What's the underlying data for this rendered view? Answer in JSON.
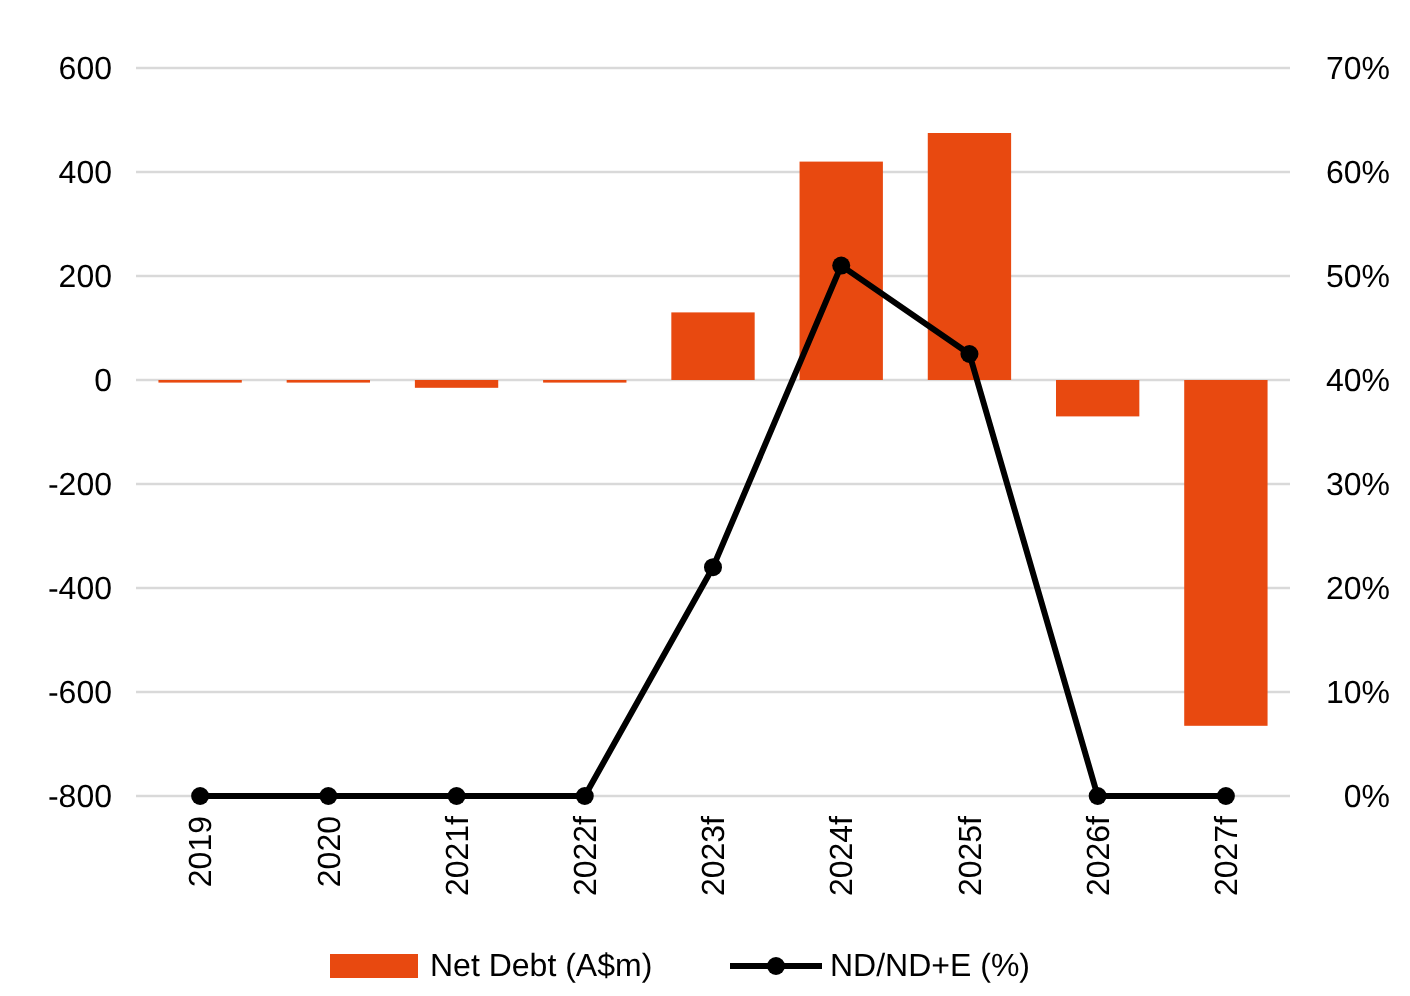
{
  "chart_data": {
    "type": "bar",
    "categories": [
      "2019",
      "2020",
      "2021f",
      "2022f",
      "2023f",
      "2024f",
      "2025f",
      "2026f",
      "2027f"
    ],
    "series": [
      {
        "name": "Net Debt (A$m)",
        "color": "#e84910",
        "values": [
          -5,
          -5,
          -15,
          -5,
          130,
          420,
          475,
          -70,
          -665
        ]
      },
      {
        "name": "ND/ND+E (%)",
        "type": "line",
        "axis": "y2",
        "color": "#000000",
        "marker": "circle",
        "values": [
          0,
          0,
          0,
          0,
          22,
          51,
          42.5,
          0,
          0
        ]
      }
    ],
    "ylim": [
      -800,
      600
    ],
    "yticks": [
      -800,
      -600,
      -400,
      -200,
      0,
      200,
      400,
      600
    ],
    "y2lim": [
      0,
      70
    ],
    "y2ticks": [
      {
        "value": 0,
        "label": "0%"
      },
      {
        "value": 10,
        "label": "10%"
      },
      {
        "value": 20,
        "label": "20%"
      },
      {
        "value": 30,
        "label": "30%"
      },
      {
        "value": 40,
        "label": "40%"
      },
      {
        "value": 50,
        "label": "50%"
      },
      {
        "value": 60,
        "label": "60%"
      },
      {
        "value": 70,
        "label": "70%"
      }
    ],
    "grid": "y",
    "legend": "bottom"
  }
}
